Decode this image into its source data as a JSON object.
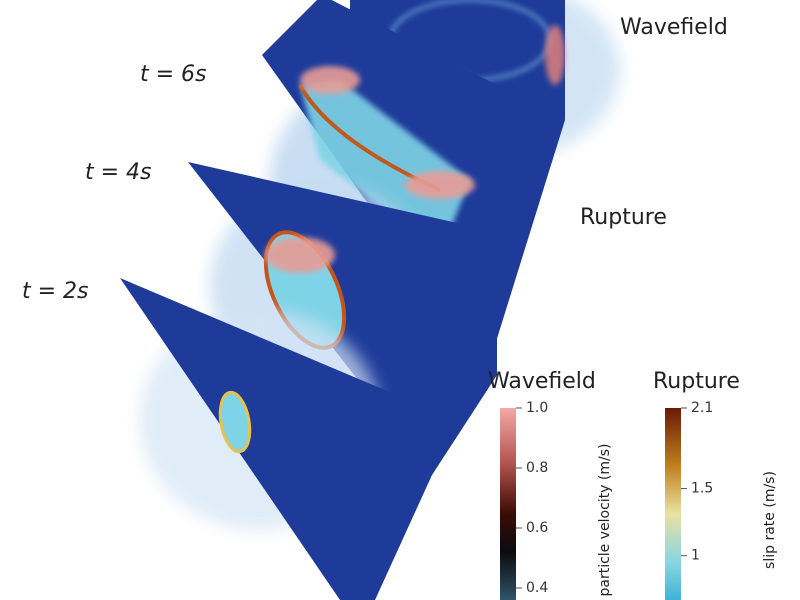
{
  "labels": {
    "wavefield": "Wavefield",
    "rupture": "Rupture",
    "times": [
      "t = 6s",
      "t = 4s",
      "t = 2s"
    ]
  },
  "colorbars": [
    {
      "title": "Wavefield",
      "axis_label": "particle velocity (m/s)",
      "ylim": [
        0.36,
        1.0
      ],
      "yticks": [
        {
          "value": 1,
          "label": "1.0"
        },
        0.8,
        0.6,
        0.4
      ]
    },
    {
      "title": "Rupture",
      "axis_label": "slip rate (m/s)",
      "ylim": [
        0.67,
        2.1
      ],
      "yticks": [
        2.1,
        1.5,
        1
      ]
    }
  ]
}
